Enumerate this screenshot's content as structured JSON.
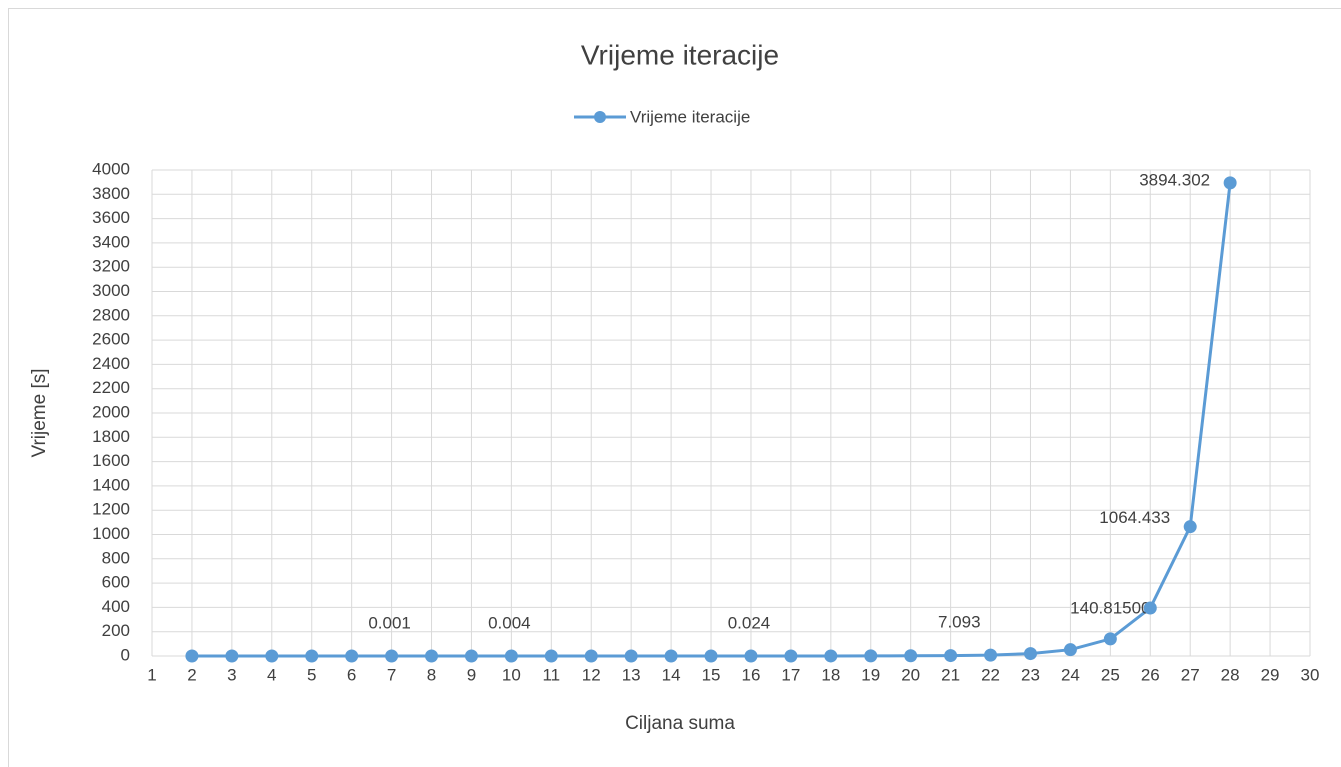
{
  "chart_data": {
    "type": "line",
    "title": "Vrijeme iteracije",
    "x_label": "Ciljana suma",
    "y_label": "Vrijeme [s]",
    "x": [
      2,
      3,
      4,
      5,
      6,
      7,
      8,
      9,
      10,
      11,
      12,
      13,
      14,
      15,
      16,
      17,
      18,
      19,
      20,
      21,
      22,
      23,
      24,
      25,
      26,
      27,
      28
    ],
    "series": [
      {
        "name": "Vrijeme iteracije",
        "color": "#5b9bd5",
        "values": [
          0,
          0,
          0,
          0,
          0,
          0.001,
          0.001,
          0.002,
          0.004,
          0.006,
          0.008,
          0.01,
          0.013,
          0.018,
          0.024,
          0.1,
          0.3,
          0.8,
          2,
          3.5,
          7.093,
          20,
          52,
          140.815,
          395,
          1064.433,
          3894.302
        ],
        "value_labels": [
          null,
          null,
          null,
          null,
          null,
          "0.001",
          null,
          null,
          "0.004",
          null,
          null,
          null,
          null,
          null,
          "0.024",
          null,
          null,
          null,
          null,
          null,
          "7.093",
          null,
          null,
          "140.81500",
          null,
          "1064.433",
          "3894.302"
        ]
      }
    ],
    "xlim": [
      1,
      30
    ],
    "xticks": [
      1,
      2,
      3,
      4,
      5,
      6,
      7,
      8,
      9,
      10,
      11,
      12,
      13,
      14,
      15,
      16,
      17,
      18,
      19,
      20,
      21,
      22,
      23,
      24,
      25,
      26,
      27,
      28,
      29,
      30
    ],
    "ylim": [
      0,
      4000
    ],
    "yticks": [
      0,
      200,
      400,
      600,
      800,
      1000,
      1200,
      1400,
      1600,
      1800,
      2000,
      2200,
      2400,
      2600,
      2800,
      3000,
      3200,
      3400,
      3600,
      3800,
      4000
    ],
    "grid": true,
    "legend": "top"
  }
}
